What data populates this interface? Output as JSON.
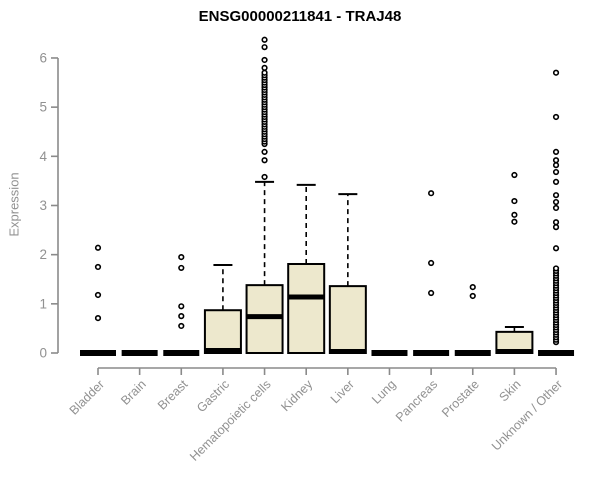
{
  "chart_data": {
    "type": "boxplot",
    "title": "ENSG00000211841 - TRAJ48",
    "ylabel": "Expression",
    "xlabel": "",
    "ylim": [
      0,
      6.5
    ],
    "y_ticks": [
      0,
      1,
      2,
      3,
      4,
      5,
      6
    ],
    "grid": false,
    "legend": "none",
    "colors": {
      "box_fill": "#EDE8CD",
      "box_border": "#000000",
      "median": "#000000",
      "outlier_stroke": "#000000",
      "outlier_fill": "#ffffff",
      "axis": "#8a8a8a",
      "tick_text": "#919191",
      "title_text": "#000000"
    },
    "categories": [
      "Bladder",
      "Brain",
      "Breast",
      "Gastric",
      "Hematopoietic cells",
      "Kidney",
      "Liver",
      "Lung",
      "Pancreas",
      "Prostate",
      "Skin",
      "Unknown / Other"
    ],
    "boxes": [
      {
        "label": "Bladder",
        "q1": 0,
        "median": 0,
        "q3": 0,
        "whisker_low": 0,
        "whisker_high": 0,
        "outliers": [
          0.71,
          1.18,
          1.75,
          2.14
        ]
      },
      {
        "label": "Brain",
        "q1": 0,
        "median": 0,
        "q3": 0,
        "whisker_low": 0,
        "whisker_high": 0,
        "outliers": []
      },
      {
        "label": "Breast",
        "q1": 0,
        "median": 0,
        "q3": 0,
        "whisker_low": 0,
        "whisker_high": 0,
        "outliers": [
          0.55,
          0.75,
          0.95,
          1.73,
          1.95
        ]
      },
      {
        "label": "Gastric",
        "q1": 0,
        "median": 0.05,
        "q3": 0.87,
        "whisker_low": 0,
        "whisker_high": 1.79,
        "outliers": []
      },
      {
        "label": "Hematopoietic cells",
        "q1": 0,
        "median": 0.74,
        "q3": 1.38,
        "whisker_low": 0,
        "whisker_high": 3.48,
        "outliers": [
          3.58,
          3.92,
          4.09,
          4.25,
          4.3,
          4.35,
          4.4,
          4.45,
          4.5,
          4.55,
          4.6,
          4.65,
          4.7,
          4.75,
          4.8,
          4.85,
          4.9,
          4.95,
          5.0,
          5.05,
          5.1,
          5.15,
          5.2,
          5.25,
          5.3,
          5.35,
          5.4,
          5.45,
          5.5,
          5.55,
          5.6,
          5.65,
          5.7,
          5.8,
          5.96,
          6.22,
          6.37
        ]
      },
      {
        "label": "Kidney",
        "q1": 0,
        "median": 1.14,
        "q3": 1.81,
        "whisker_low": 0,
        "whisker_high": 3.42,
        "outliers": []
      },
      {
        "label": "Liver",
        "q1": 0,
        "median": 0.03,
        "q3": 1.36,
        "whisker_low": 0,
        "whisker_high": 3.23,
        "outliers": []
      },
      {
        "label": "Lung",
        "q1": 0,
        "median": 0,
        "q3": 0,
        "whisker_low": 0,
        "whisker_high": 0,
        "outliers": []
      },
      {
        "label": "Pancreas",
        "q1": 0,
        "median": 0,
        "q3": 0,
        "whisker_low": 0,
        "whisker_high": 0,
        "outliers": [
          1.22,
          1.83,
          3.25
        ]
      },
      {
        "label": "Prostate",
        "q1": 0,
        "median": 0,
        "q3": 0,
        "whisker_low": 0,
        "whisker_high": 0,
        "outliers": [
          1.16,
          1.34
        ]
      },
      {
        "label": "Skin",
        "q1": 0,
        "median": 0.03,
        "q3": 0.43,
        "whisker_low": 0,
        "whisker_high": 0.53,
        "outliers": [
          2.67,
          2.81,
          3.09,
          3.62
        ]
      },
      {
        "label": "Unknown / Other",
        "q1": 0,
        "median": 0,
        "q3": 0,
        "whisker_low": 0,
        "whisker_high": 0,
        "outliers": [
          0.22,
          0.27,
          0.32,
          0.37,
          0.42,
          0.47,
          0.52,
          0.57,
          0.62,
          0.67,
          0.72,
          0.77,
          0.82,
          0.87,
          0.92,
          0.97,
          1.02,
          1.07,
          1.12,
          1.17,
          1.22,
          1.27,
          1.32,
          1.37,
          1.42,
          1.47,
          1.52,
          1.57,
          1.62,
          1.67,
          1.72,
          2.13,
          2.56,
          2.66,
          2.95,
          3.07,
          3.21,
          3.48,
          3.68,
          3.82,
          3.92,
          4.09,
          4.8,
          5.7
        ]
      }
    ]
  }
}
